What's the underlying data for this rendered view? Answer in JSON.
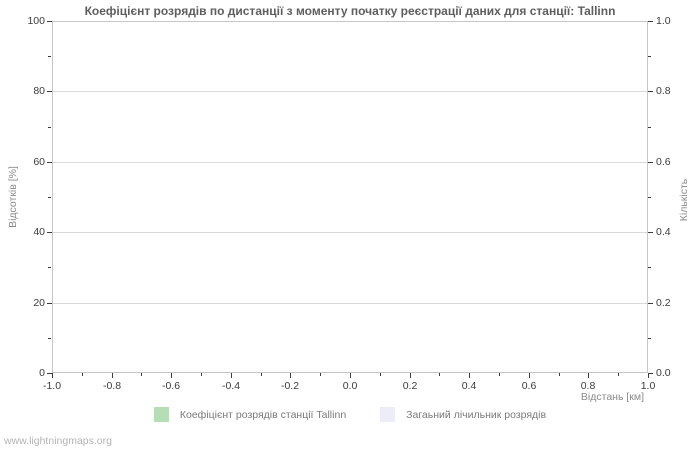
{
  "page": {
    "watermark": "www.lightningmaps.org"
  },
  "chart_data": {
    "type": "bar",
    "title": "Коефіцієнт розрядів по дистанції з моменту початку реєстрації даних для станції: Tallinn",
    "grid": "horizontal-only",
    "legend_position": "bottom-center",
    "plot_background": "#ffffff",
    "gridline_color": "#d9d9d9",
    "border_color": "#c6c6c6",
    "x_axis": {
      "label": "Відстань  [км]",
      "min": -1.0,
      "max": 1.0,
      "major_ticks": [
        -1.0,
        -0.8,
        -0.6,
        -0.4,
        -0.2,
        0.0,
        0.2,
        0.4,
        0.6,
        0.8,
        1.0
      ],
      "tick_labels": [
        "-1.0",
        "-0.8",
        "-0.6",
        "-0.4",
        "-0.2",
        "0.0",
        "0.2",
        "0.4",
        "0.6",
        "0.8",
        "1.0"
      ],
      "minor_step": 0.1
    },
    "y_axis_left": {
      "label": "Відсотків  [%]",
      "min": 0,
      "max": 100,
      "major_ticks": [
        0,
        20,
        40,
        60,
        80,
        100
      ],
      "tick_labels": [
        "0",
        "20",
        "40",
        "60",
        "80",
        "100"
      ],
      "minor_step": 10
    },
    "y_axis_right": {
      "label": "Кількість",
      "min": 0.0,
      "max": 1.0,
      "major_ticks": [
        0.0,
        0.2,
        0.4,
        0.6,
        0.8,
        1.0
      ],
      "tick_labels": [
        "0.0",
        "0.2",
        "0.4",
        "0.6",
        "0.8",
        "1.0"
      ],
      "minor_step": 0.1
    },
    "series": [
      {
        "name": "Коефіцієнт розрядів станції Tallinn",
        "color": "#b6deb6",
        "values": []
      },
      {
        "name": "Загаьний лічильник розрядів",
        "color": "#ededf9",
        "values": []
      }
    ],
    "note": "no data plotted - empty chart area"
  }
}
